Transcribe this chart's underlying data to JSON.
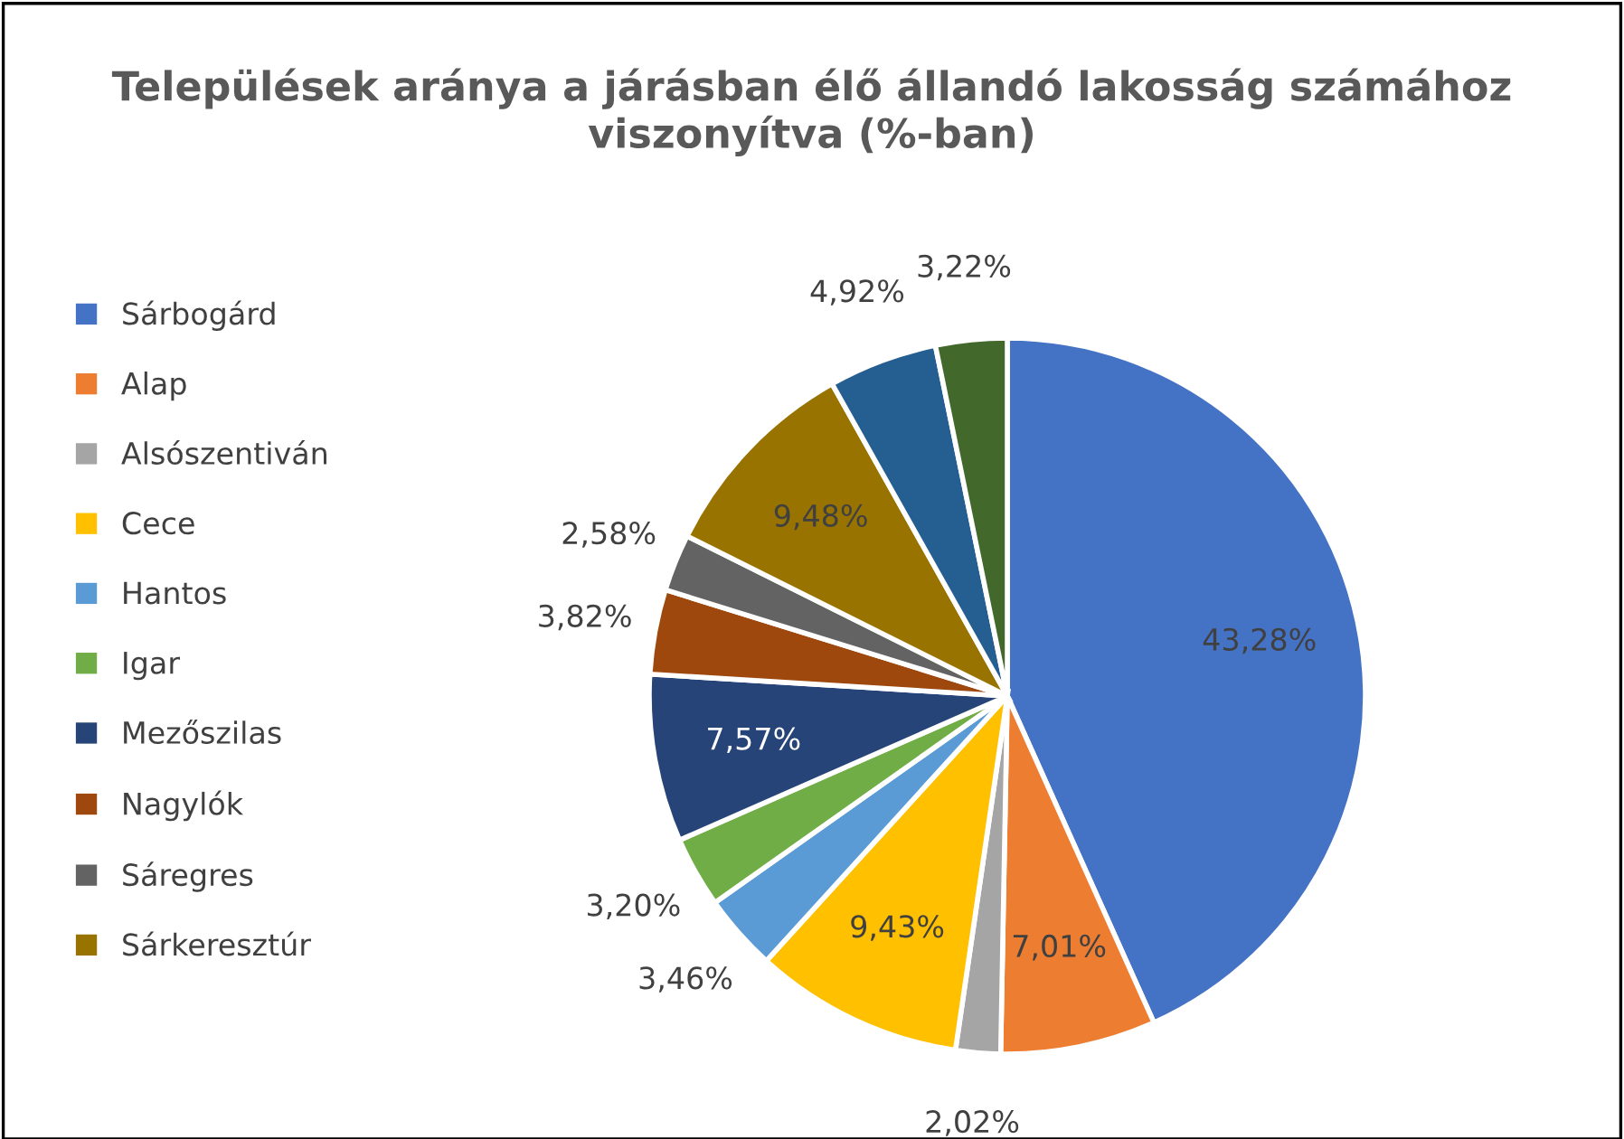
{
  "chart_data": {
    "type": "pie",
    "title": "Települések aránya a járásban élő állandó lakosság számához viszonyítva (%-ban)",
    "categories": [
      "Sárbogárd",
      "Alap",
      "Alsószentiván",
      "Cece",
      "Hantos",
      "Igar",
      "Mezőszilas",
      "Nagylók",
      "Sáregres",
      "Sárkeresztúr",
      null,
      null
    ],
    "values": [
      43.28,
      7.01,
      2.02,
      9.43,
      3.46,
      3.2,
      7.57,
      3.82,
      2.58,
      9.48,
      4.92,
      3.22
    ],
    "value_labels": [
      "43,28%",
      "7,01%",
      "2,02%",
      "9,43%",
      "3,46%",
      "3,20%",
      "7,57%",
      "3,82%",
      "2,58%",
      "9,48%",
      "4,92%",
      "3,22%"
    ],
    "colors": [
      "#4472c4",
      "#ed7d31",
      "#a5a5a5",
      "#ffc000",
      "#5b9bd5",
      "#70ad47",
      "#264478",
      "#9e480e",
      "#636363",
      "#997300",
      "#255e91",
      "#43682b"
    ],
    "legend": "left"
  }
}
